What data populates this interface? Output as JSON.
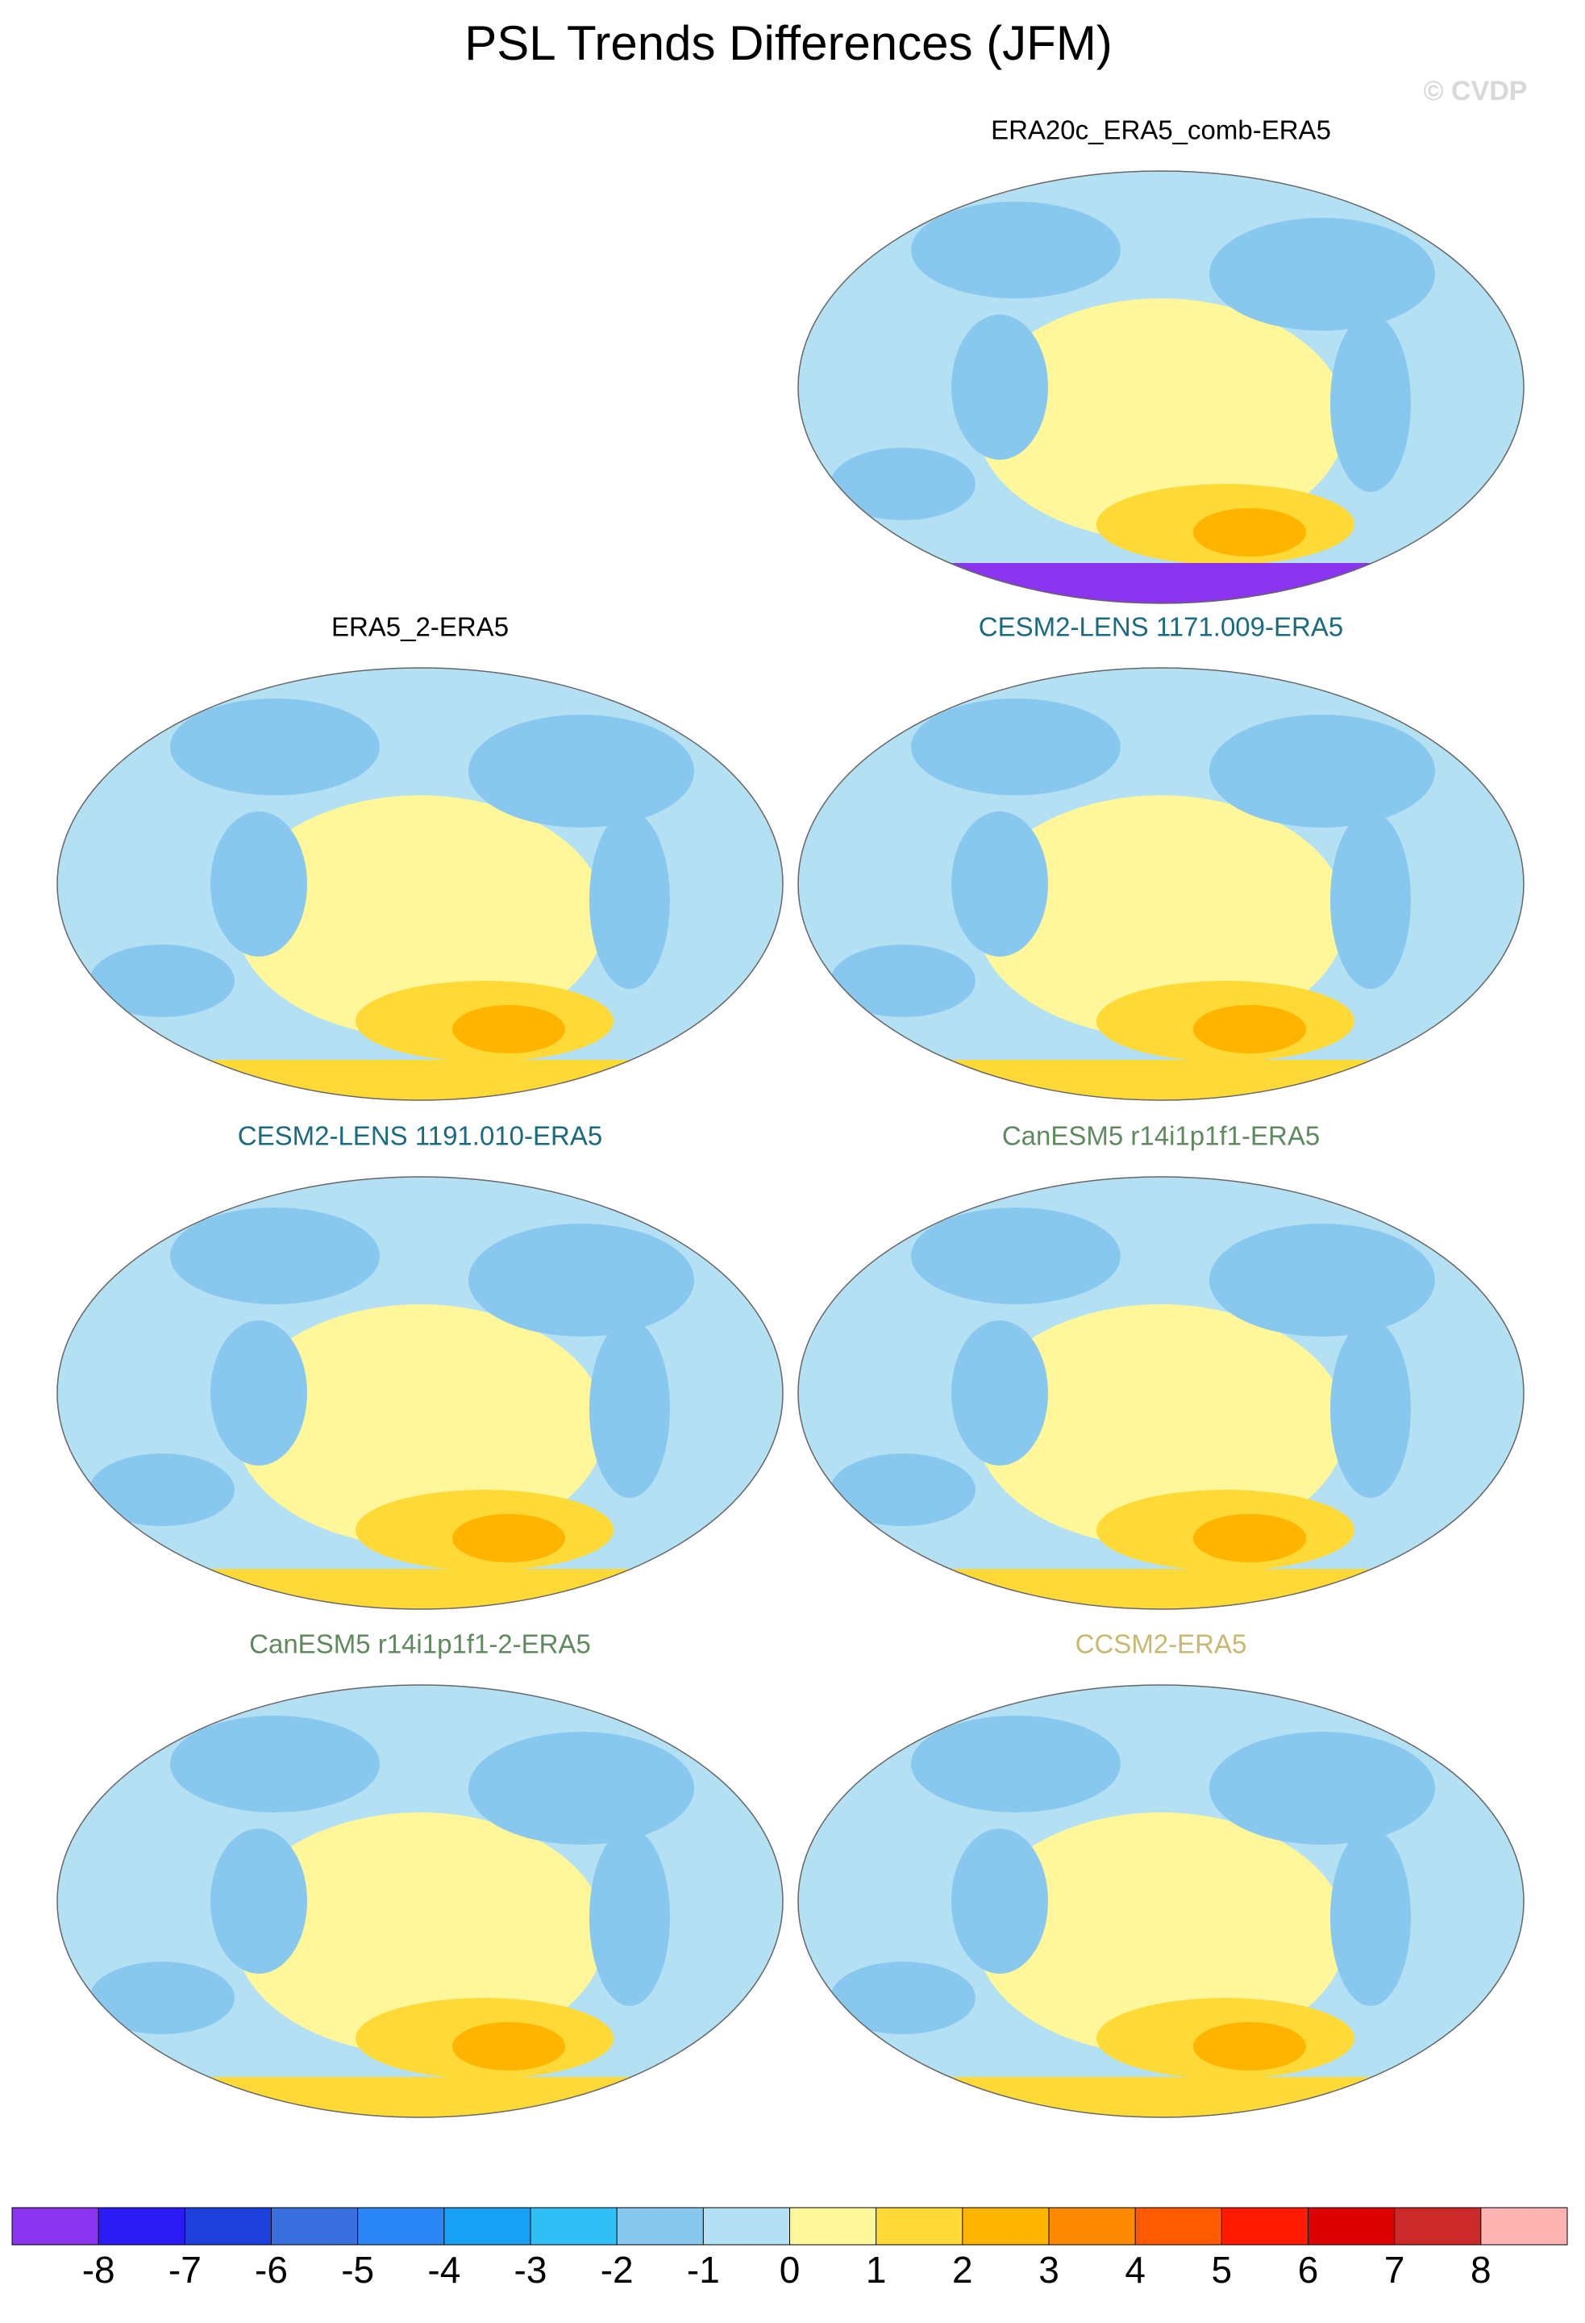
{
  "title": "PSL Trends Differences (JFM)",
  "watermark": "© CVDP",
  "panels": [
    {
      "title": "ERA20c_ERA5_comb-ERA5",
      "color": "#000000"
    },
    {
      "title": "ERA5_2-ERA5",
      "color": "#000000"
    },
    {
      "title": "CESM2-LENS 1171.009-ERA5",
      "color": "#1a6a80"
    },
    {
      "title": "CESM2-LENS 1191.010-ERA5",
      "color": "#1a6a80"
    },
    {
      "title": "CanESM5 r14i1p1f1-ERA5",
      "color": "#5e8a5e"
    },
    {
      "title": "CanESM5 r14i1p1f1-2-ERA5",
      "color": "#5e8a5e"
    },
    {
      "title": "CCSM2-ERA5",
      "color": "#c8b870"
    }
  ],
  "colorbar": {
    "levels": [
      -8,
      -7,
      -6,
      -5,
      -4,
      -3,
      -2,
      -1,
      0,
      1,
      2,
      3,
      4,
      5,
      6,
      7,
      8
    ],
    "colors": [
      "#8a34f0",
      "#2b1bf5",
      "#2040dd",
      "#3a6fdf",
      "#2a86f5",
      "#18a0f5",
      "#30c0f5",
      "#88c8ee",
      "#b4e0f4",
      "#fff79a",
      "#ffd935",
      "#ffb400",
      "#ff8a00",
      "#ff5a00",
      "#ff1a00",
      "#dd0000",
      "#cc2a2a",
      "#ffb4b4"
    ]
  }
}
